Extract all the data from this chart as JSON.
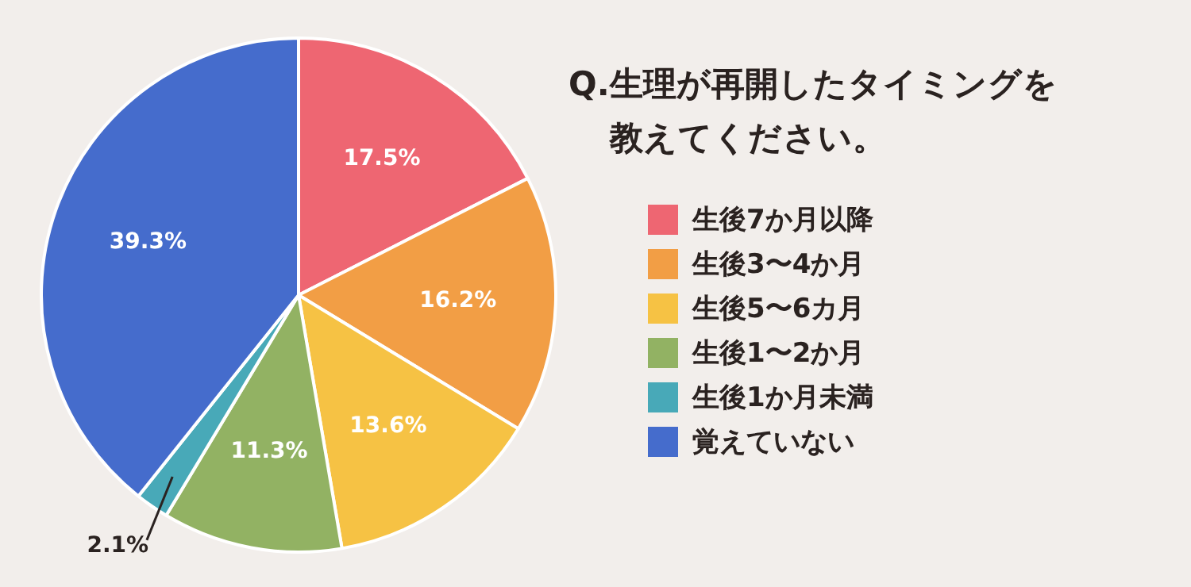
{
  "chart_data": {
    "type": "pie",
    "title": "Q.生理が再開したタイミングを教えてください。",
    "categories": [
      "生後7か月以降",
      "生後3〜4か月",
      "生後5〜6カ月",
      "生後1〜2か月",
      "生後1か月未満",
      "覚えていない"
    ],
    "values": [
      17.5,
      16.2,
      13.6,
      11.3,
      2.1,
      39.3
    ],
    "value_labels": [
      "17.5%",
      "16.2%",
      "13.6%",
      "11.3%",
      "2.1%",
      "39.3%"
    ],
    "colors": [
      "#ee6672",
      "#f29e45",
      "#f6c244",
      "#92b263",
      "#48a9b8",
      "#456ccc"
    ],
    "legend": "right"
  }
}
